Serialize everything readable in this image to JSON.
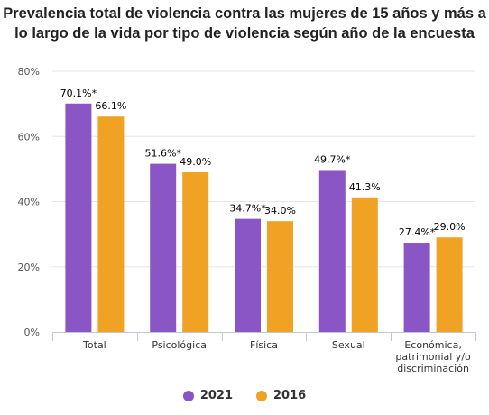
{
  "chart_data": {
    "type": "bar",
    "title_lines": [
      "Prevalencia total de violencia contra las mujeres de 15 años y más a",
      "lo largo de la vida por tipo de violencia según año de la encuesta"
    ],
    "categories": [
      [
        "Total"
      ],
      [
        "Psicológica"
      ],
      [
        "Física"
      ],
      [
        "Sexual"
      ],
      [
        "Económica,",
        "patrimonial y/o",
        "discriminación"
      ]
    ],
    "series": [
      {
        "name": "2021",
        "color": "#8a55c4",
        "values": [
          70.1,
          51.6,
          34.7,
          49.7,
          27.4
        ],
        "labels": [
          "70.1%*",
          "51.6%*",
          "34.7%*",
          "49.7%*",
          "27.4%*"
        ]
      },
      {
        "name": "2016",
        "color": "#f0a224",
        "values": [
          66.1,
          49.0,
          34.0,
          41.3,
          29.0
        ],
        "labels": [
          "66.1%",
          "49.0%",
          "34.0%",
          "41.3%",
          "29.0%"
        ]
      }
    ],
    "ylim": [
      0,
      80
    ],
    "yticks": [
      0,
      20,
      40,
      60,
      80
    ],
    "ytick_labels": [
      "0%",
      "20%",
      "40%",
      "60%",
      "80%"
    ],
    "grid": true,
    "legend_position": "bottom-center"
  }
}
